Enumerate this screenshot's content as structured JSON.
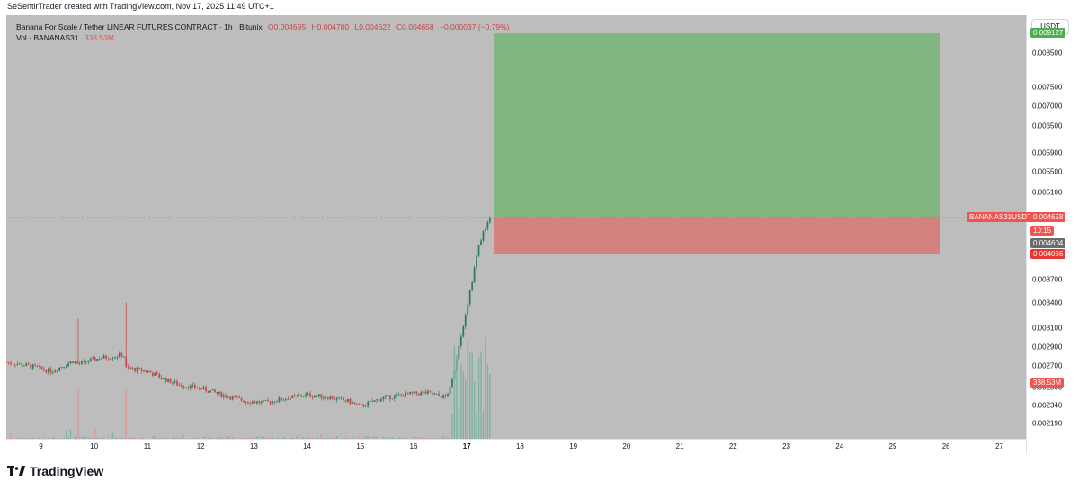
{
  "header": {
    "attribution": "SeSentirTrader created with TradingView.com, Nov 17, 2025 11:49 UTC+1"
  },
  "legend": {
    "symbol": "Banana For Scale / Tether LINEAR FUTURES CONTRACT · 1h · Bitunix",
    "open": "O0.004695",
    "high": "H0.004780",
    "low": "L0.004622",
    "close": "C0.004658",
    "change": "−0.000037 (−0.79%)",
    "volume_label": "Vol · BANANAS31",
    "volume_value": "338.53M"
  },
  "currency_button": "USDT",
  "price_axis": {
    "ticks": [
      "0.008500",
      "0.007500",
      "0.007000",
      "0.006500",
      "0.005900",
      "0.005500",
      "0.005100",
      "0.003700",
      "0.003400",
      "0.003100",
      "0.002900",
      "0.002700",
      "0.002500",
      "0.002340",
      "0.002190"
    ]
  },
  "badges": {
    "target": "0.009127",
    "symbol_tag": "BANANAS31USDT.P",
    "last_price": "0.004658",
    "countdown": "10:15",
    "mid_price": "0.004604",
    "stop": "0.004066",
    "volume": "338.53M"
  },
  "time_axis": {
    "ticks": [
      "9",
      "10",
      "11",
      "12",
      "13",
      "14",
      "15",
      "16",
      "17",
      "18",
      "19",
      "20",
      "21",
      "22",
      "23",
      "24",
      "25",
      "26",
      "27"
    ]
  },
  "brand": {
    "name": "TradingView"
  },
  "colors": {
    "background": "#bdbdbd",
    "profit_zone": "#81b681",
    "loss_zone": "#d4827f",
    "up": "#2e7d5b",
    "down": "#c94a4a",
    "last_price": "#f05350",
    "target": "#4caf50"
  },
  "chart_data": {
    "type": "candlestick",
    "interval": "1h",
    "y_scale": "log",
    "ylim": [
      0.00207,
      0.00975
    ],
    "x_range": [
      8.35,
      27.5
    ],
    "last": {
      "open": 0.004695,
      "high": 0.00478,
      "low": 0.004622,
      "close": 0.004658
    },
    "position": {
      "entry": 0.004658,
      "target": 0.009127,
      "stop": 0.004066,
      "x_start": 17.52,
      "x_end": 25.88
    },
    "price_path": [
      [
        8.35,
        0.00274
      ],
      [
        8.8,
        0.0027
      ],
      [
        9.2,
        0.00265
      ],
      [
        9.6,
        0.00275
      ],
      [
        9.7,
        0.00272
      ],
      [
        10.1,
        0.00278
      ],
      [
        10.4,
        0.0028
      ],
      [
        10.55,
        0.00282
      ],
      [
        10.6,
        0.00268
      ],
      [
        11.0,
        0.00265
      ],
      [
        11.3,
        0.00258
      ],
      [
        11.6,
        0.00252
      ],
      [
        12.0,
        0.00249
      ],
      [
        12.4,
        0.00243
      ],
      [
        12.8,
        0.00238
      ],
      [
        13.2,
        0.00236
      ],
      [
        13.6,
        0.0024
      ],
      [
        14.0,
        0.00243
      ],
      [
        14.4,
        0.00241
      ],
      [
        14.8,
        0.00237
      ],
      [
        15.0,
        0.00233
      ],
      [
        15.4,
        0.0024
      ],
      [
        15.8,
        0.00243
      ],
      [
        16.2,
        0.00245
      ],
      [
        16.6,
        0.00241
      ],
      [
        16.7,
        0.0025
      ],
      [
        16.85,
        0.0029
      ],
      [
        17.0,
        0.00335
      ],
      [
        17.1,
        0.0037
      ],
      [
        17.2,
        0.0041
      ],
      [
        17.3,
        0.0044
      ],
      [
        17.45,
        0.004658
      ]
    ],
    "spikes": [
      {
        "x": 9.7,
        "high": 0.00321
      },
      {
        "x": 10.6,
        "high": 0.00341
      }
    ],
    "volume_last": 338.53
  }
}
